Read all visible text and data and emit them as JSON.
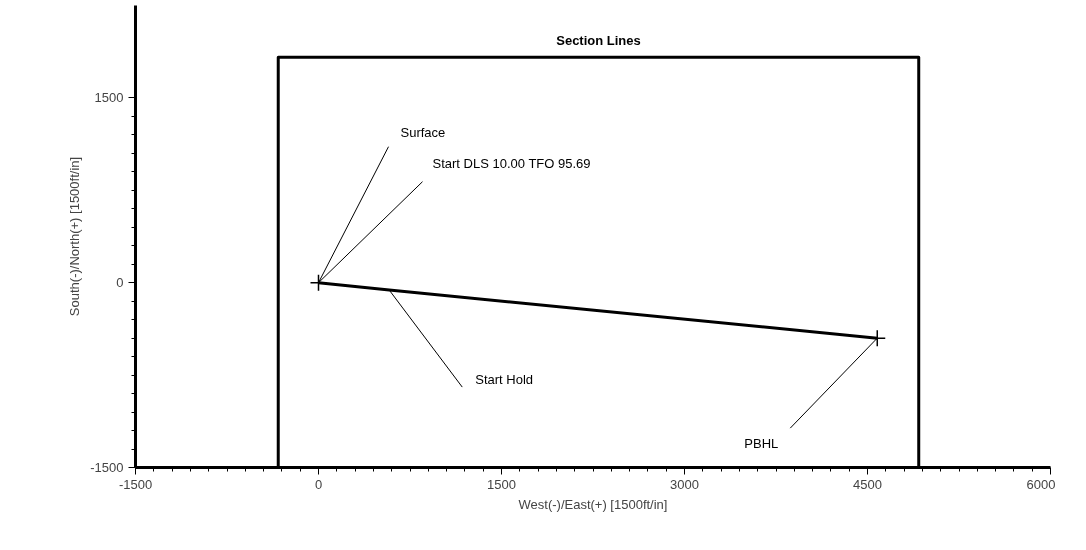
{
  "chart_data": {
    "type": "line",
    "xlabel": "West(-)/East(+) [1500ft/in]",
    "ylabel": "South(-)/North(+) [1500ft/in]",
    "xlim": [
      -1500,
      6000
    ],
    "ylim": [
      -1500,
      2250
    ],
    "xticks": [
      -1500,
      0,
      1500,
      3000,
      4500,
      6000
    ],
    "yticks": [
      -1500,
      0,
      1500
    ],
    "grid": false,
    "series": [
      {
        "name": "Section Lines",
        "type": "line",
        "color": "#000000",
        "x": [
          -330,
          -330,
          4920,
          4920
        ],
        "values": [
          -1500,
          1830,
          1830,
          -1500
        ]
      },
      {
        "color": "#000000",
        "x": [
          0,
          580,
          4580
        ],
        "values": [
          0,
          -60,
          -450
        ]
      },
      {
        "type": "scatter",
        "marker": "cross",
        "color": "#000000",
        "x": [
          0,
          4580
        ],
        "values": [
          0,
          -450
        ]
      }
    ],
    "annotations": [
      {
        "text": "Surface",
        "x": 0,
        "y": 0
      },
      {
        "text": "Start DLS 10.00 TFO 95.69",
        "x": 0,
        "y": 0
      },
      {
        "text": "Start Hold",
        "x": 580,
        "y": -60
      },
      {
        "text": "PBHL",
        "x": 4580,
        "y": -450
      }
    ]
  }
}
